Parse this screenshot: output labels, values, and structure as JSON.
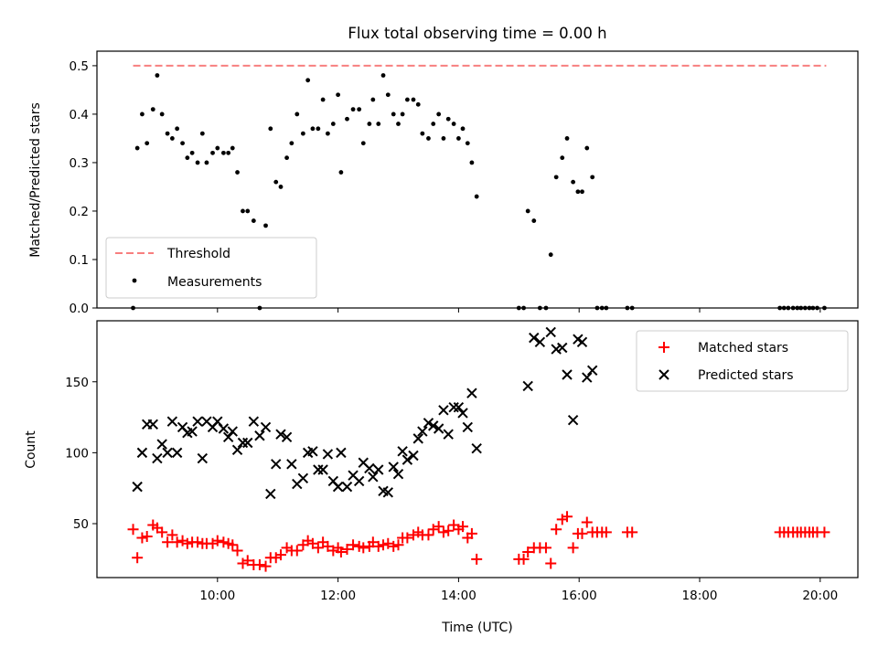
{
  "figure": {
    "title": "Flux total observing time = 0.00 h"
  },
  "chart_data": [
    {
      "type": "scatter",
      "ylabel": "Matched/Predicted stars",
      "ylim": [
        0,
        0.53
      ],
      "yticks": [
        "0.0",
        "0.1",
        "0.2",
        "0.3",
        "0.4",
        "0.5"
      ],
      "ytick_values": [
        0,
        0.1,
        0.2,
        0.3,
        0.4,
        0.5
      ],
      "xlim_hours": [
        8.0,
        20.625
      ],
      "legend": {
        "placement": "lower-left",
        "entries": [
          "Threshold",
          "Measurements"
        ]
      },
      "threshold": {
        "name": "Threshold",
        "value": 0.5,
        "x_start": 8.6,
        "x_end": 20.1,
        "color": "#f77f7f"
      },
      "measurements": {
        "name": "Measurements",
        "color": "#000000",
        "points": [
          [
            8.6,
            0.0
          ],
          [
            8.67,
            0.33
          ],
          [
            8.75,
            0.4
          ],
          [
            8.83,
            0.34
          ],
          [
            8.93,
            0.41
          ],
          [
            9.0,
            0.48
          ],
          [
            9.08,
            0.4
          ],
          [
            9.17,
            0.36
          ],
          [
            9.25,
            0.35
          ],
          [
            9.33,
            0.37
          ],
          [
            9.42,
            0.34
          ],
          [
            9.5,
            0.31
          ],
          [
            9.58,
            0.32
          ],
          [
            9.67,
            0.3
          ],
          [
            9.75,
            0.36
          ],
          [
            9.82,
            0.3
          ],
          [
            9.92,
            0.32
          ],
          [
            10.0,
            0.33
          ],
          [
            10.1,
            0.32
          ],
          [
            10.18,
            0.32
          ],
          [
            10.25,
            0.33
          ],
          [
            10.33,
            0.28
          ],
          [
            10.42,
            0.2
          ],
          [
            10.5,
            0.2
          ],
          [
            10.6,
            0.18
          ],
          [
            10.7,
            0.0
          ],
          [
            10.8,
            0.17
          ],
          [
            10.88,
            0.37
          ],
          [
            10.97,
            0.26
          ],
          [
            11.05,
            0.25
          ],
          [
            11.15,
            0.31
          ],
          [
            11.23,
            0.34
          ],
          [
            11.32,
            0.4
          ],
          [
            11.42,
            0.36
          ],
          [
            11.5,
            0.47
          ],
          [
            11.58,
            0.37
          ],
          [
            11.67,
            0.37
          ],
          [
            11.75,
            0.43
          ],
          [
            11.83,
            0.36
          ],
          [
            11.92,
            0.38
          ],
          [
            12.0,
            0.44
          ],
          [
            12.05,
            0.28
          ],
          [
            12.15,
            0.39
          ],
          [
            12.25,
            0.41
          ],
          [
            12.35,
            0.41
          ],
          [
            12.42,
            0.34
          ],
          [
            12.52,
            0.38
          ],
          [
            12.58,
            0.43
          ],
          [
            12.67,
            0.38
          ],
          [
            12.75,
            0.48
          ],
          [
            12.83,
            0.44
          ],
          [
            12.92,
            0.4
          ],
          [
            13.0,
            0.38
          ],
          [
            13.07,
            0.4
          ],
          [
            13.15,
            0.43
          ],
          [
            13.25,
            0.43
          ],
          [
            13.33,
            0.42
          ],
          [
            13.4,
            0.36
          ],
          [
            13.5,
            0.35
          ],
          [
            13.58,
            0.38
          ],
          [
            13.67,
            0.4
          ],
          [
            13.75,
            0.35
          ],
          [
            13.83,
            0.39
          ],
          [
            13.92,
            0.38
          ],
          [
            14.0,
            0.35
          ],
          [
            14.07,
            0.37
          ],
          [
            14.15,
            0.34
          ],
          [
            14.22,
            0.3
          ],
          [
            14.3,
            0.23
          ],
          [
            15.0,
            0.0
          ],
          [
            15.08,
            0.0
          ],
          [
            15.15,
            0.2
          ],
          [
            15.25,
            0.18
          ],
          [
            15.35,
            0.0
          ],
          [
            15.45,
            0.0
          ],
          [
            15.53,
            0.11
          ],
          [
            15.62,
            0.27
          ],
          [
            15.72,
            0.31
          ],
          [
            15.8,
            0.35
          ],
          [
            15.9,
            0.26
          ],
          [
            15.98,
            0.24
          ],
          [
            16.05,
            0.24
          ],
          [
            16.13,
            0.33
          ],
          [
            16.22,
            0.27
          ],
          [
            16.3,
            0.0
          ],
          [
            16.38,
            0.0
          ],
          [
            16.45,
            0.0
          ],
          [
            16.8,
            0.0
          ],
          [
            16.88,
            0.0
          ],
          [
            19.33,
            0.0
          ],
          [
            19.4,
            0.0
          ],
          [
            19.47,
            0.0
          ],
          [
            19.55,
            0.0
          ],
          [
            19.62,
            0.0
          ],
          [
            19.68,
            0.0
          ],
          [
            19.75,
            0.0
          ],
          [
            19.82,
            0.0
          ],
          [
            19.88,
            0.0
          ],
          [
            19.95,
            0.0
          ],
          [
            20.07,
            0.0
          ]
        ]
      }
    },
    {
      "type": "scatter",
      "xlabel": "Time (UTC)",
      "ylabel": "Count",
      "ylim": [
        12,
        193
      ],
      "yticks": [
        "50",
        "100",
        "150"
      ],
      "ytick_values": [
        50,
        100,
        150
      ],
      "xlim_hours": [
        8.0,
        20.625
      ],
      "xticks": [
        "10:00",
        "12:00",
        "14:00",
        "16:00",
        "18:00",
        "20:00"
      ],
      "xtick_values": [
        10,
        12,
        14,
        16,
        18,
        20
      ],
      "legend": {
        "placement": "upper-right",
        "entries": [
          "Matched stars",
          "Predicted stars"
        ]
      },
      "matched": {
        "name": "Matched stars",
        "color": "#ff0000",
        "marker": "+",
        "points": [
          [
            8.6,
            46
          ],
          [
            8.67,
            26
          ],
          [
            8.75,
            40
          ],
          [
            8.83,
            41
          ],
          [
            8.93,
            49
          ],
          [
            9.0,
            47
          ],
          [
            9.08,
            44
          ],
          [
            9.17,
            37
          ],
          [
            9.25,
            42
          ],
          [
            9.33,
            37
          ],
          [
            9.42,
            38
          ],
          [
            9.5,
            36
          ],
          [
            9.58,
            37
          ],
          [
            9.67,
            37
          ],
          [
            9.75,
            36
          ],
          [
            9.82,
            36
          ],
          [
            9.92,
            36
          ],
          [
            10.0,
            38
          ],
          [
            10.1,
            37
          ],
          [
            10.18,
            36
          ],
          [
            10.25,
            35
          ],
          [
            10.33,
            31
          ],
          [
            10.42,
            22
          ],
          [
            10.5,
            24
          ],
          [
            10.6,
            21
          ],
          [
            10.7,
            21
          ],
          [
            10.8,
            20
          ],
          [
            10.88,
            26
          ],
          [
            10.97,
            26
          ],
          [
            11.05,
            28
          ],
          [
            11.15,
            33
          ],
          [
            11.23,
            31
          ],
          [
            11.32,
            31
          ],
          [
            11.42,
            35
          ],
          [
            11.5,
            38
          ],
          [
            11.58,
            36
          ],
          [
            11.67,
            33
          ],
          [
            11.75,
            37
          ],
          [
            11.83,
            34
          ],
          [
            11.92,
            31
          ],
          [
            12.0,
            33
          ],
          [
            12.05,
            30
          ],
          [
            12.15,
            32
          ],
          [
            12.25,
            35
          ],
          [
            12.35,
            34
          ],
          [
            12.42,
            33
          ],
          [
            12.52,
            34
          ],
          [
            12.58,
            37
          ],
          [
            12.67,
            34
          ],
          [
            12.75,
            35
          ],
          [
            12.83,
            36
          ],
          [
            12.92,
            34
          ],
          [
            13.0,
            35
          ],
          [
            13.07,
            40
          ],
          [
            13.15,
            40
          ],
          [
            13.25,
            42
          ],
          [
            13.33,
            44
          ],
          [
            13.4,
            42
          ],
          [
            13.5,
            42
          ],
          [
            13.58,
            46
          ],
          [
            13.67,
            48
          ],
          [
            13.75,
            44
          ],
          [
            13.83,
            45
          ],
          [
            13.92,
            49
          ],
          [
            14.0,
            46
          ],
          [
            14.07,
            48
          ],
          [
            14.15,
            40
          ],
          [
            14.22,
            43
          ],
          [
            14.3,
            25
          ],
          [
            15.0,
            25
          ],
          [
            15.08,
            25
          ],
          [
            15.15,
            30
          ],
          [
            15.25,
            33
          ],
          [
            15.35,
            33
          ],
          [
            15.45,
            33
          ],
          [
            15.53,
            22
          ],
          [
            15.62,
            46
          ],
          [
            15.72,
            53
          ],
          [
            15.8,
            55
          ],
          [
            15.9,
            33
          ],
          [
            15.98,
            43
          ],
          [
            16.05,
            43
          ],
          [
            16.13,
            51
          ],
          [
            16.22,
            44
          ],
          [
            16.3,
            44
          ],
          [
            16.38,
            44
          ],
          [
            16.45,
            44
          ],
          [
            16.8,
            44
          ],
          [
            16.88,
            44
          ],
          [
            19.33,
            44
          ],
          [
            19.4,
            44
          ],
          [
            19.47,
            44
          ],
          [
            19.55,
            44
          ],
          [
            19.62,
            44
          ],
          [
            19.68,
            44
          ],
          [
            19.75,
            44
          ],
          [
            19.82,
            44
          ],
          [
            19.88,
            44
          ],
          [
            19.95,
            44
          ],
          [
            20.07,
            44
          ]
        ]
      },
      "predicted": {
        "name": "Predicted stars",
        "color": "#000000",
        "marker": "x",
        "points": [
          [
            8.67,
            76
          ],
          [
            8.75,
            100
          ],
          [
            8.83,
            120
          ],
          [
            8.93,
            120
          ],
          [
            9.0,
            96
          ],
          [
            9.08,
            106
          ],
          [
            9.17,
            100
          ],
          [
            9.25,
            122
          ],
          [
            9.33,
            100
          ],
          [
            9.42,
            118
          ],
          [
            9.5,
            114
          ],
          [
            9.58,
            115
          ],
          [
            9.67,
            122
          ],
          [
            9.75,
            96
          ],
          [
            9.82,
            122
          ],
          [
            9.92,
            118
          ],
          [
            10.0,
            122
          ],
          [
            10.1,
            117
          ],
          [
            10.18,
            111
          ],
          [
            10.25,
            115
          ],
          [
            10.33,
            102
          ],
          [
            10.42,
            107
          ],
          [
            10.5,
            107
          ],
          [
            10.6,
            122
          ],
          [
            10.7,
            112
          ],
          [
            10.8,
            118
          ],
          [
            10.88,
            71
          ],
          [
            10.97,
            92
          ],
          [
            11.05,
            113
          ],
          [
            11.15,
            111
          ],
          [
            11.23,
            92
          ],
          [
            11.32,
            78
          ],
          [
            11.42,
            82
          ],
          [
            11.5,
            100
          ],
          [
            11.58,
            101
          ],
          [
            11.67,
            88
          ],
          [
            11.75,
            88
          ],
          [
            11.83,
            99
          ],
          [
            11.92,
            80
          ],
          [
            12.0,
            76
          ],
          [
            12.05,
            100
          ],
          [
            12.15,
            76
          ],
          [
            12.25,
            84
          ],
          [
            12.35,
            80
          ],
          [
            12.42,
            93
          ],
          [
            12.52,
            89
          ],
          [
            12.58,
            83
          ],
          [
            12.67,
            88
          ],
          [
            12.75,
            73
          ],
          [
            12.83,
            72
          ],
          [
            12.92,
            90
          ],
          [
            13.0,
            85
          ],
          [
            13.07,
            101
          ],
          [
            13.15,
            95
          ],
          [
            13.25,
            98
          ],
          [
            13.33,
            110
          ],
          [
            13.4,
            115
          ],
          [
            13.5,
            121
          ],
          [
            13.58,
            119
          ],
          [
            13.67,
            117
          ],
          [
            13.75,
            130
          ],
          [
            13.83,
            113
          ],
          [
            13.92,
            132
          ],
          [
            14.0,
            132
          ],
          [
            14.07,
            128
          ],
          [
            14.15,
            118
          ],
          [
            14.22,
            142
          ],
          [
            14.3,
            103
          ],
          [
            15.15,
            147
          ],
          [
            15.25,
            181
          ],
          [
            15.35,
            178
          ],
          [
            15.53,
            185
          ],
          [
            15.62,
            173
          ],
          [
            15.72,
            174
          ],
          [
            15.8,
            155
          ],
          [
            15.9,
            123
          ],
          [
            15.98,
            180
          ],
          [
            16.05,
            178
          ],
          [
            16.13,
            153
          ],
          [
            16.22,
            158
          ]
        ]
      }
    }
  ]
}
